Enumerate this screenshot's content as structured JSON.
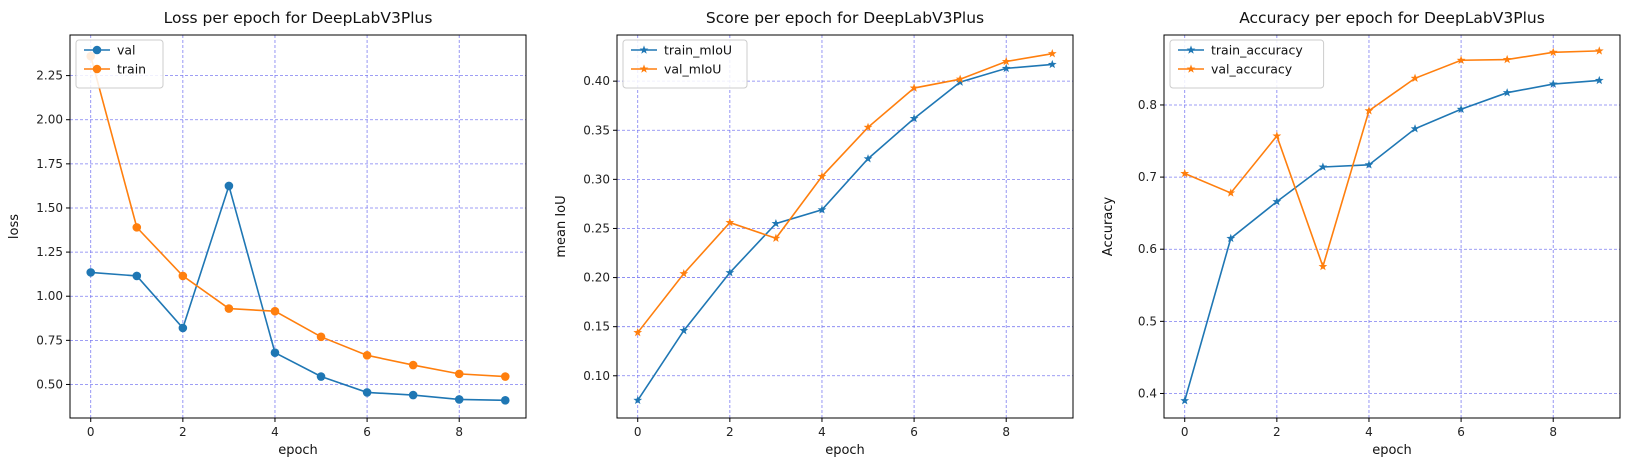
{
  "colors": {
    "blue": "#1f77b4",
    "orange": "#ff7f0e",
    "grid": "#7070f0"
  },
  "chart_data": [
    {
      "type": "line",
      "title": "Loss per epoch for DeepLabV3Plus",
      "xlabel": "epoch",
      "ylabel": "loss",
      "x": [
        0,
        1,
        2,
        3,
        4,
        5,
        6,
        7,
        8,
        9
      ],
      "xticks": [
        0,
        2,
        4,
        6,
        8
      ],
      "xticklabels": [
        "0",
        "2",
        "4",
        "6",
        "8"
      ],
      "xlim": [
        -0.45,
        9.45
      ],
      "yticks": [
        0.5,
        0.75,
        1.0,
        1.25,
        1.5,
        1.75,
        2.0,
        2.25
      ],
      "yticklabels": [
        "0.50",
        "0.75",
        "1.00",
        "1.25",
        "1.50",
        "1.75",
        "2.00",
        "2.25"
      ],
      "ylim": [
        0.31,
        2.48
      ],
      "grid": true,
      "legend_position": "upper-left",
      "series": [
        {
          "name": "val",
          "color": "#1f77b4",
          "marker": "circle",
          "values": [
            1.135,
            1.115,
            0.82,
            1.625,
            0.68,
            0.545,
            0.455,
            0.44,
            0.415,
            0.41
          ]
        },
        {
          "name": "train",
          "color": "#ff7f0e",
          "marker": "circle",
          "values": [
            2.36,
            1.39,
            1.115,
            0.93,
            0.915,
            0.77,
            0.665,
            0.61,
            0.56,
            0.545
          ]
        }
      ]
    },
    {
      "type": "line",
      "title": "Score per epoch for DeepLabV3Plus",
      "xlabel": "epoch",
      "ylabel": "mean IoU",
      "x": [
        0,
        1,
        2,
        3,
        4,
        5,
        6,
        7,
        8,
        9
      ],
      "xticks": [
        0,
        2,
        4,
        6,
        8
      ],
      "xticklabels": [
        "0",
        "2",
        "4",
        "6",
        "8"
      ],
      "xlim": [
        -0.45,
        9.45
      ],
      "yticks": [
        0.1,
        0.15,
        0.2,
        0.25,
        0.3,
        0.35,
        0.4
      ],
      "yticklabels": [
        "0.10",
        "0.15",
        "0.20",
        "0.25",
        "0.30",
        "0.35",
        "0.40"
      ],
      "ylim": [
        0.057,
        0.447
      ],
      "grid": true,
      "legend_position": "upper-left",
      "series": [
        {
          "name": "train_mIoU",
          "color": "#1f77b4",
          "marker": "star",
          "values": [
            0.075,
            0.146,
            0.205,
            0.255,
            0.269,
            0.321,
            0.362,
            0.399,
            0.413,
            0.417
          ]
        },
        {
          "name": "val_mIoU",
          "color": "#ff7f0e",
          "marker": "star",
          "values": [
            0.144,
            0.204,
            0.256,
            0.24,
            0.303,
            0.353,
            0.393,
            0.402,
            0.42,
            0.428
          ]
        }
      ]
    },
    {
      "type": "line",
      "title": "Accuracy per epoch for DeepLabV3Plus",
      "xlabel": "epoch",
      "ylabel": "Accuracy",
      "x": [
        0,
        1,
        2,
        3,
        4,
        5,
        6,
        7,
        8,
        9
      ],
      "xticks": [
        0,
        2,
        4,
        6,
        8
      ],
      "xticklabels": [
        "0",
        "2",
        "4",
        "6",
        "8"
      ],
      "xlim": [
        -0.45,
        9.45
      ],
      "yticks": [
        0.4,
        0.5,
        0.6,
        0.7,
        0.8
      ],
      "yticklabels": [
        "0.4",
        "0.5",
        "0.6",
        "0.7",
        "0.8"
      ],
      "ylim": [
        0.366,
        0.897
      ],
      "grid": true,
      "legend_position": "upper-left",
      "series": [
        {
          "name": "train_accuracy",
          "color": "#1f77b4",
          "marker": "star",
          "values": [
            0.39,
            0.615,
            0.666,
            0.714,
            0.717,
            0.767,
            0.794,
            0.817,
            0.829,
            0.834
          ]
        },
        {
          "name": "val_accuracy",
          "color": "#ff7f0e",
          "marker": "star",
          "values": [
            0.705,
            0.678,
            0.757,
            0.576,
            0.792,
            0.837,
            0.862,
            0.863,
            0.873,
            0.875
          ]
        }
      ]
    }
  ]
}
